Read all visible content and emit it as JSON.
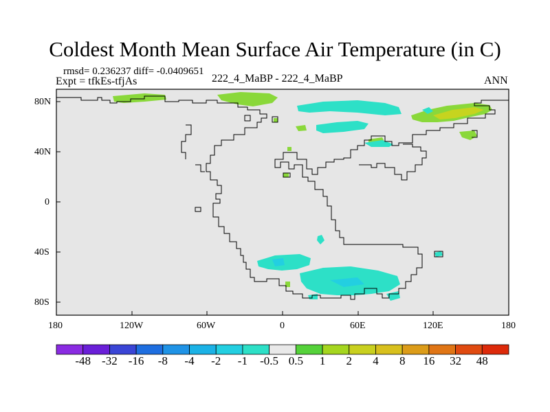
{
  "title": "Coldest Month Mean Surface Air Temperature (in C)",
  "stats": {
    "rmsd_diff": "rmsd= 0.236237 diff= -0.0409651",
    "expt": "Expt = tfkEs-tfjAs",
    "center": "222_4_MaBP - 222_4_MaBP",
    "season": "ANN"
  },
  "y_ticks": [
    "80N",
    "40N",
    "0",
    "40S",
    "80S"
  ],
  "x_ticks": [
    "180",
    "120W",
    "60W",
    "0",
    "60E",
    "120E",
    "180"
  ],
  "colorbar": {
    "colors": [
      "#8a2be2",
      "#6a1fd8",
      "#3a45d6",
      "#1e6ee0",
      "#1f93e6",
      "#1bb2e6",
      "#23cfe1",
      "#2de0c7",
      "#e9e9e9",
      "#55d23a",
      "#a5d61f",
      "#c9d01f",
      "#d8c01d",
      "#dc9c19",
      "#e07515",
      "#e04a10",
      "#dd2a0a"
    ],
    "labels": [
      "-48",
      "-32",
      "-16",
      "-8",
      "-4",
      "-2",
      "-1",
      "-0.5",
      "0.5",
      "1",
      "2",
      "4",
      "8",
      "16",
      "32",
      "48"
    ]
  },
  "map": {
    "background": "#e6e6e6",
    "lon_range": [
      -180,
      180
    ],
    "lat_range": [
      -90,
      90
    ]
  }
}
